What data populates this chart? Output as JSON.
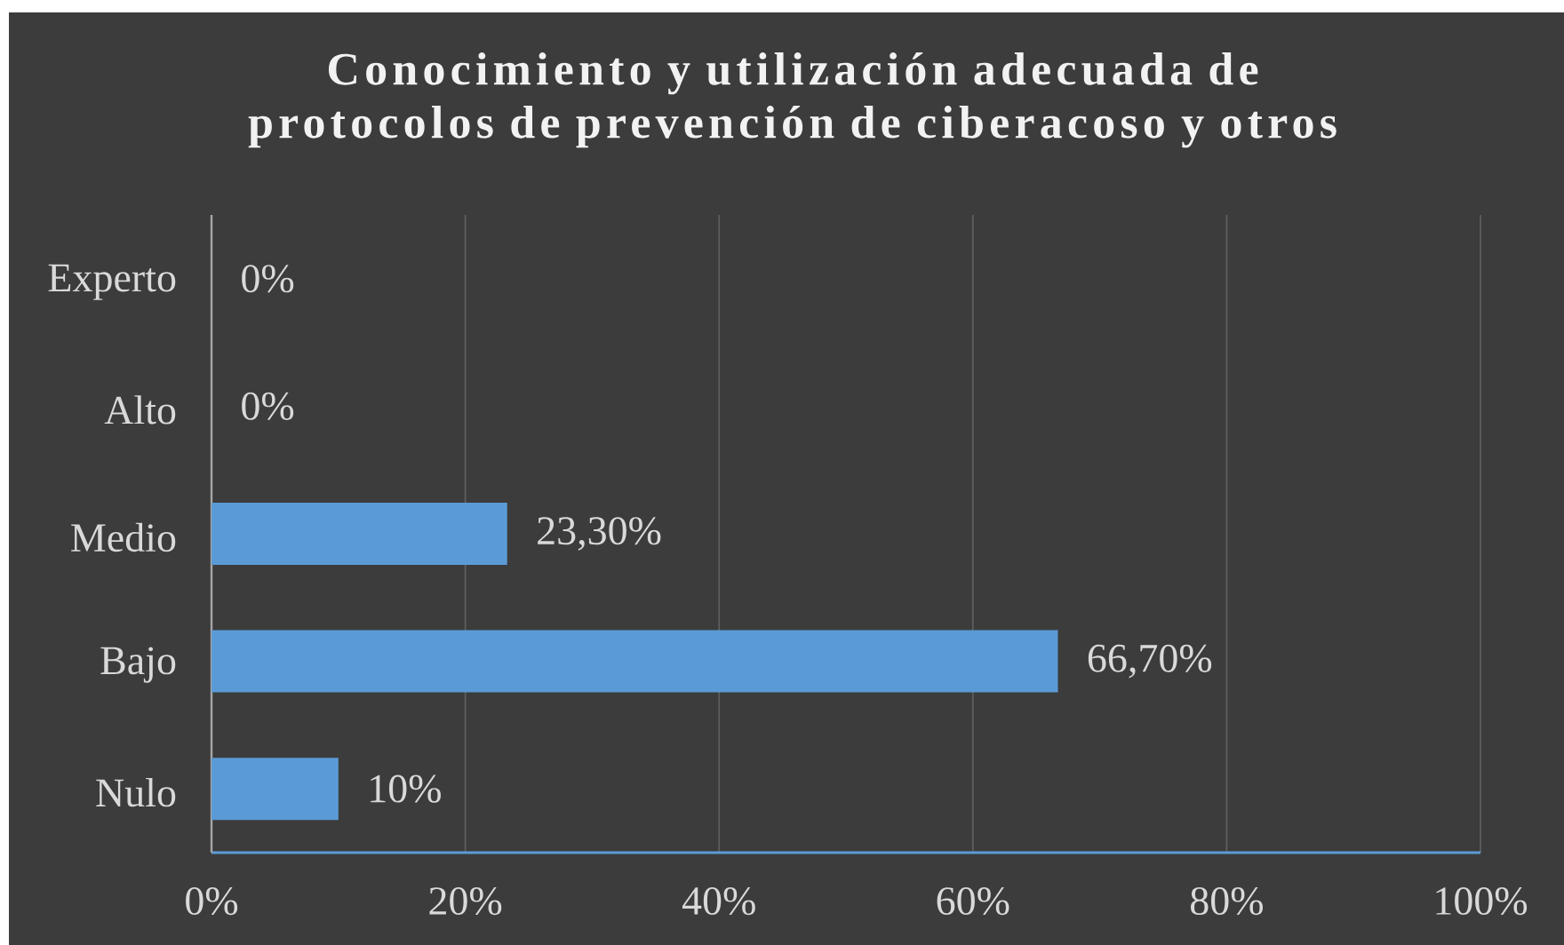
{
  "chart_data": {
    "type": "bar",
    "orientation": "horizontal",
    "title": "Conocimiento y utilización adecuada de protocolos de prevención de ciberacoso y otros",
    "categories": [
      "Experto",
      "Alto",
      "Medio",
      "Bajo",
      "Nulo"
    ],
    "values": [
      0,
      0,
      23.3,
      66.7,
      10
    ],
    "value_labels": [
      "0%",
      "0%",
      "23,30%",
      "66,70%",
      "10%"
    ],
    "color": "#5b9bd5",
    "xlim": [
      0,
      100
    ],
    "xticks": [
      {
        "value": 0,
        "label": "0%"
      },
      {
        "value": 20,
        "label": "20%"
      },
      {
        "value": 40,
        "label": "40%"
      },
      {
        "value": 60,
        "label": "60%"
      },
      {
        "value": 80,
        "label": "80%"
      },
      {
        "value": 100,
        "label": "100%"
      }
    ],
    "grid": "x"
  }
}
